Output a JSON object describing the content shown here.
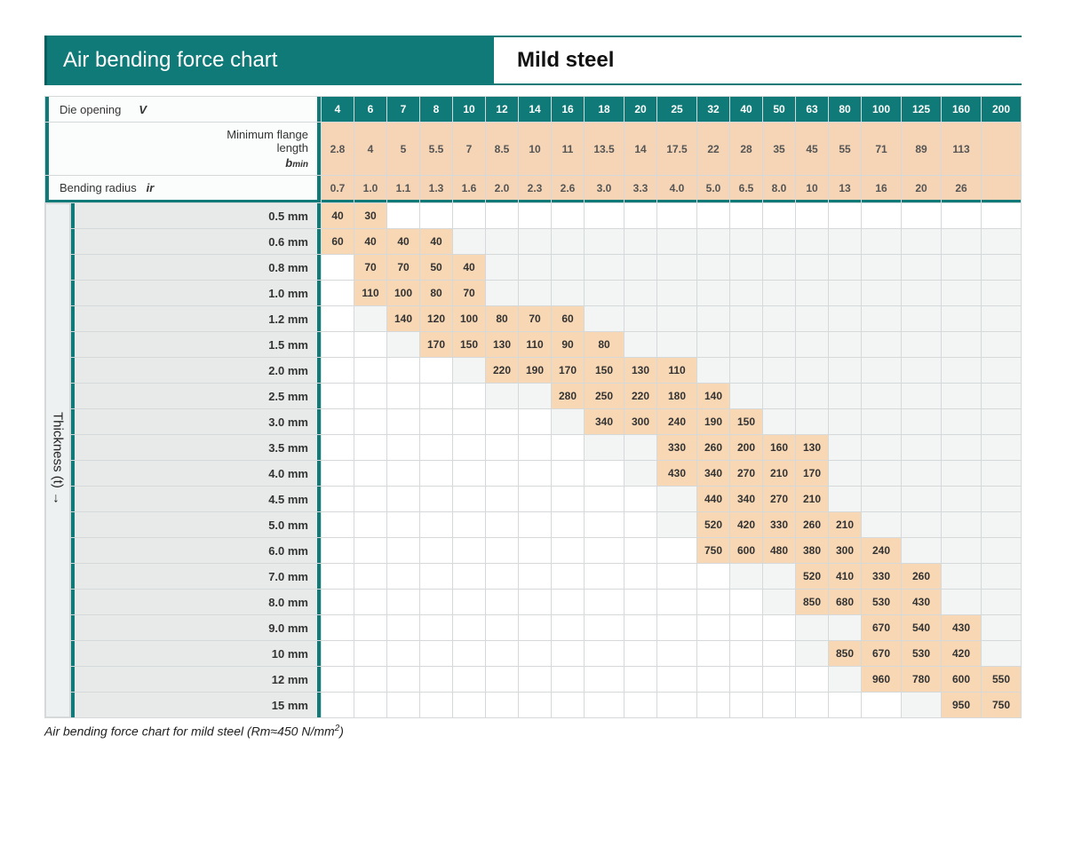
{
  "header": {
    "title_left": "Air bending force chart",
    "title_right": "Mild steel"
  },
  "side_label": "Thickness (t) →",
  "caption": {
    "text": "Air bending force chart for mild steel (Rm≈450 N/mm",
    "sup": "2",
    "tail": ")"
  },
  "colors": {
    "teal": "#0f7a77",
    "peach_header": "#f5d5b6",
    "peach_cell": "#f7d7b4",
    "grey_bg": "#f3f5f5",
    "grey_head": "#e8eaea",
    "white": "#ffffff",
    "border": "#d6d9da"
  },
  "row_labels": {
    "die": {
      "text": "Die opening",
      "symbol": "V"
    },
    "flange": {
      "l1": "Minimum flange",
      "l2": "length",
      "symbol_b": "b",
      "symbol_sub": "min"
    },
    "radius": {
      "text": "Bending radius",
      "symbol": "ir"
    }
  },
  "die_opening": [
    "4",
    "6",
    "7",
    "8",
    "10",
    "12",
    "14",
    "16",
    "18",
    "20",
    "25",
    "32",
    "40",
    "50",
    "63",
    "80",
    "100",
    "125",
    "160",
    "200"
  ],
  "column_widths_class": [
    "col-narrow",
    "col-narrow",
    "col-narrow",
    "col-narrow",
    "col-narrow",
    "col-narrow",
    "col-narrow",
    "col-narrow",
    "col-wide",
    "col-narrow",
    "col-wide",
    "col-narrow",
    "col-narrow",
    "col-narrow",
    "col-narrow",
    "col-narrow",
    "col-wide",
    "col-wide",
    "col-wide",
    "col-wide"
  ],
  "flange": [
    "2.8",
    "4",
    "5",
    "5.5",
    "7",
    "8.5",
    "10",
    "11",
    "13.5",
    "14",
    "17.5",
    "22",
    "28",
    "35",
    "45",
    "55",
    "71",
    "89",
    "113",
    ""
  ],
  "radius": [
    "0.7",
    "1.0",
    "1.1",
    "1.3",
    "1.6",
    "2.0",
    "2.3",
    "2.6",
    "3.0",
    "3.3",
    "4.0",
    "5.0",
    "6.5",
    "8.0",
    "10",
    "13",
    "16",
    "20",
    "26",
    ""
  ],
  "rows": [
    {
      "label": "0.5 mm",
      "cells": [
        "40",
        "30",
        "b",
        "b",
        "b",
        "b",
        "b",
        "b",
        "b",
        "b",
        "b",
        "b",
        "b",
        "b",
        "b",
        "b",
        "b",
        "b",
        "b",
        "b"
      ]
    },
    {
      "label": "0.6 mm",
      "cells": [
        "60",
        "40",
        "40",
        "40",
        "",
        "",
        "",
        "",
        "",
        "",
        "",
        "",
        "",
        "",
        "",
        "",
        "",
        "",
        "",
        ""
      ]
    },
    {
      "label": "0.8 mm",
      "cells": [
        "b",
        "70",
        "70",
        "50",
        "40",
        "",
        "",
        "",
        "",
        "",
        "",
        "",
        "",
        "",
        "",
        "",
        "",
        "",
        "",
        ""
      ]
    },
    {
      "label": "1.0 mm",
      "cells": [
        "b",
        "110",
        "100",
        "80",
        "70",
        "",
        "",
        "",
        "",
        "",
        "",
        "",
        "",
        "",
        "",
        "",
        "",
        "",
        "",
        ""
      ]
    },
    {
      "label": "1.2 mm",
      "cells": [
        "b",
        "",
        "140",
        "120",
        "100",
        "80",
        "70",
        "60",
        "",
        "",
        "",
        "",
        "",
        "",
        "",
        "",
        "",
        "",
        "",
        ""
      ]
    },
    {
      "label": "1.5 mm",
      "cells": [
        "b",
        "b",
        "",
        "170",
        "150",
        "130",
        "110",
        "90",
        "80",
        "",
        "",
        "",
        "",
        "",
        "",
        "",
        "",
        "",
        "",
        ""
      ]
    },
    {
      "label": "2.0 mm",
      "cells": [
        "b",
        "b",
        "b",
        "b",
        "",
        "220",
        "190",
        "170",
        "150",
        "130",
        "110",
        "",
        "",
        "",
        "",
        "",
        "",
        "",
        "",
        ""
      ]
    },
    {
      "label": "2.5 mm",
      "cells": [
        "b",
        "b",
        "b",
        "b",
        "b",
        "",
        "",
        "280",
        "250",
        "220",
        "180",
        "140",
        "",
        "",
        "",
        "",
        "",
        "",
        "",
        ""
      ]
    },
    {
      "label": "3.0 mm",
      "cells": [
        "b",
        "b",
        "b",
        "b",
        "b",
        "b",
        "b",
        "",
        "340",
        "300",
        "240",
        "190",
        "150",
        "",
        "",
        "",
        "",
        "",
        "",
        ""
      ]
    },
    {
      "label": "3.5 mm",
      "cells": [
        "b",
        "b",
        "b",
        "b",
        "b",
        "b",
        "b",
        "b",
        "",
        "",
        "330",
        "260",
        "200",
        "160",
        "130",
        "",
        "",
        "",
        "",
        ""
      ]
    },
    {
      "label": "4.0 mm",
      "cells": [
        "b",
        "b",
        "b",
        "b",
        "b",
        "b",
        "b",
        "b",
        "b",
        "",
        "430",
        "340",
        "270",
        "210",
        "170",
        "",
        "",
        "",
        "",
        ""
      ]
    },
    {
      "label": "4.5 mm",
      "cells": [
        "b",
        "b",
        "b",
        "b",
        "b",
        "b",
        "b",
        "b",
        "b",
        "b",
        "",
        "440",
        "340",
        "270",
        "210",
        "",
        "",
        "",
        "",
        ""
      ]
    },
    {
      "label": "5.0 mm",
      "cells": [
        "b",
        "b",
        "b",
        "b",
        "b",
        "b",
        "b",
        "b",
        "b",
        "b",
        "",
        "520",
        "420",
        "330",
        "260",
        "210",
        "",
        "",
        "",
        ""
      ]
    },
    {
      "label": "6.0 mm",
      "cells": [
        "b",
        "b",
        "b",
        "b",
        "b",
        "b",
        "b",
        "b",
        "b",
        "b",
        "b",
        "750",
        "600",
        "480",
        "380",
        "300",
        "240",
        "",
        "",
        ""
      ]
    },
    {
      "label": "7.0 mm",
      "cells": [
        "b",
        "b",
        "b",
        "b",
        "b",
        "b",
        "b",
        "b",
        "b",
        "b",
        "b",
        "b",
        "",
        "",
        "520",
        "410",
        "330",
        "260",
        "",
        ""
      ]
    },
    {
      "label": "8.0 mm",
      "cells": [
        "b",
        "b",
        "b",
        "b",
        "b",
        "b",
        "b",
        "b",
        "b",
        "b",
        "b",
        "b",
        "b",
        "",
        "850",
        "680",
        "530",
        "430",
        "",
        ""
      ]
    },
    {
      "label": "9.0 mm",
      "cells": [
        "b",
        "b",
        "b",
        "b",
        "b",
        "b",
        "b",
        "b",
        "b",
        "b",
        "b",
        "b",
        "b",
        "b",
        "",
        "",
        "670",
        "540",
        "430",
        ""
      ]
    },
    {
      "label": "10 mm",
      "cells": [
        "b",
        "b",
        "b",
        "b",
        "b",
        "b",
        "b",
        "b",
        "b",
        "b",
        "b",
        "b",
        "b",
        "b",
        "",
        "850",
        "670",
        "530",
        "420",
        ""
      ]
    },
    {
      "label": "12 mm",
      "cells": [
        "b",
        "b",
        "b",
        "b",
        "b",
        "b",
        "b",
        "b",
        "b",
        "b",
        "b",
        "b",
        "b",
        "b",
        "b",
        "",
        "960",
        "780",
        "600",
        "550"
      ]
    },
    {
      "label": "15 mm",
      "cells": [
        "b",
        "b",
        "b",
        "b",
        "b",
        "b",
        "b",
        "b",
        "b",
        "b",
        "b",
        "b",
        "b",
        "b",
        "b",
        "b",
        "b",
        "",
        "950",
        "750"
      ]
    }
  ]
}
